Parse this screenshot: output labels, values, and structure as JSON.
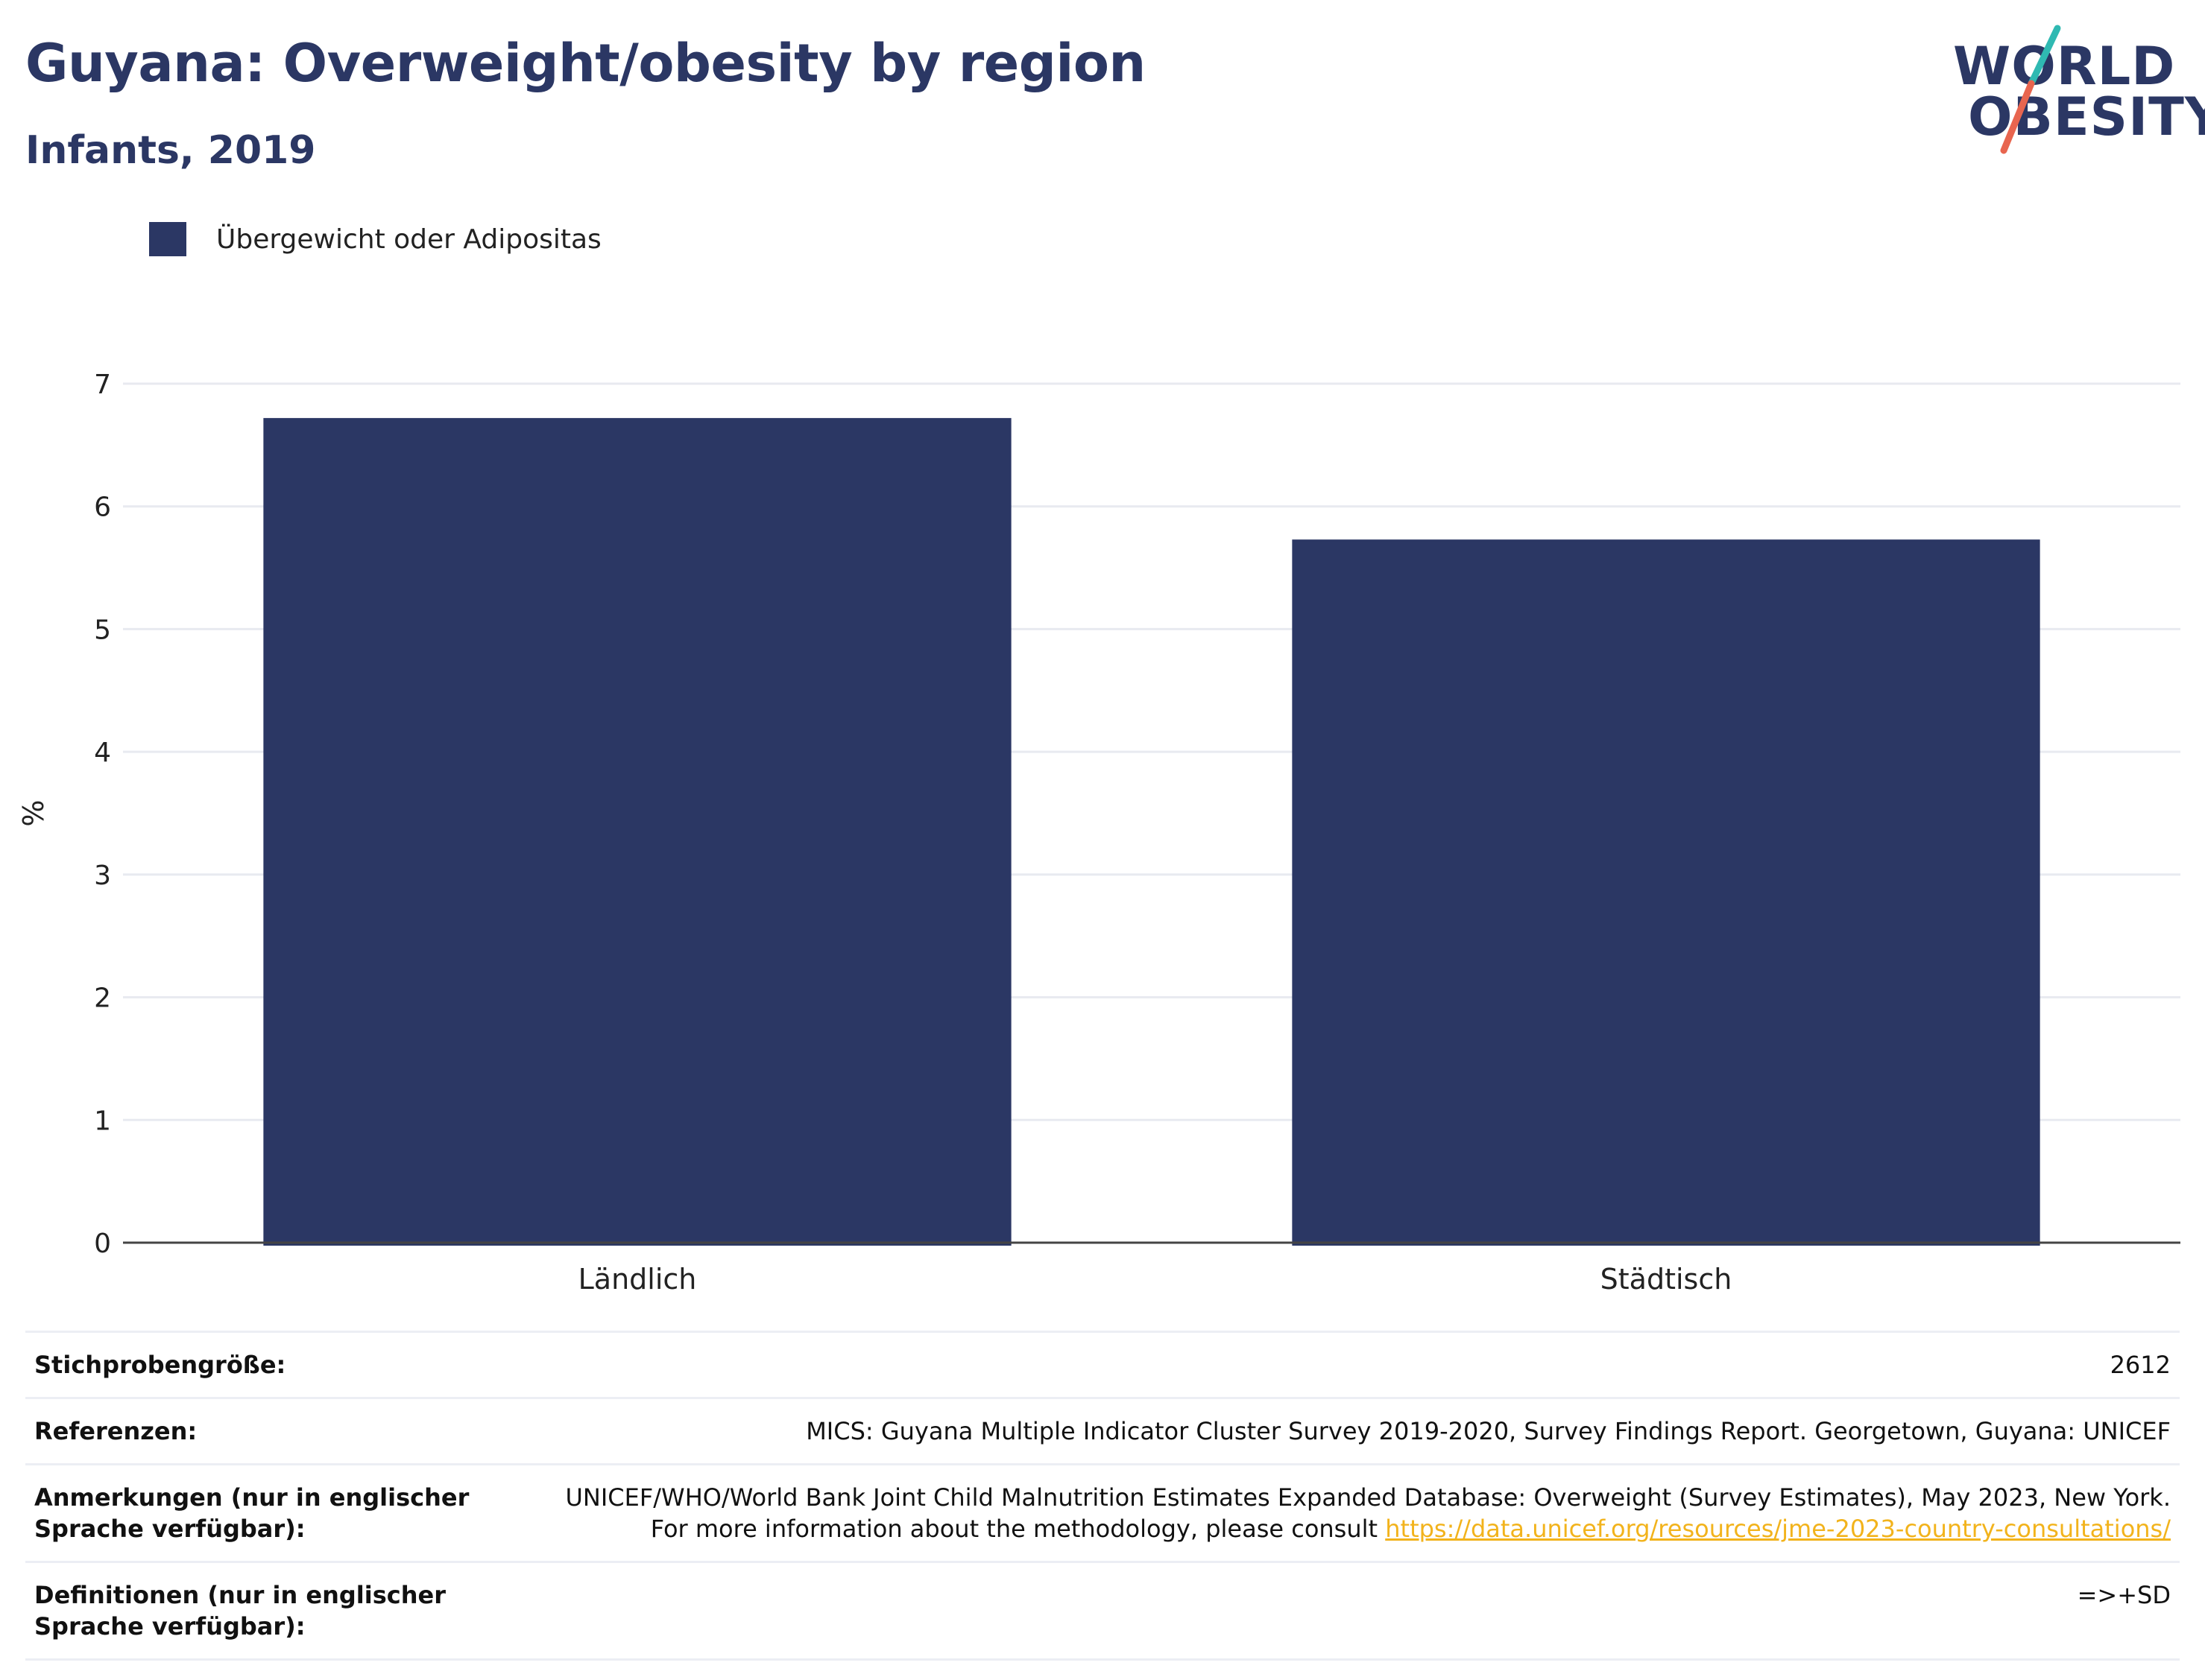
{
  "header": {
    "title": "Guyana: Overweight/obesity by region",
    "subtitle": "Infants, 2019"
  },
  "logo": {
    "line1": "WORLD",
    "line2": "OBESITY",
    "accent_colors": [
      "#2fb9b2",
      "#e8654f"
    ]
  },
  "legend": {
    "label": "Übergewicht oder Adipositas",
    "color": "#2b3764"
  },
  "chart_data": {
    "type": "bar",
    "categories": [
      "Ländlich",
      "Städtisch"
    ],
    "series": [
      {
        "name": "Übergewicht oder Adipositas",
        "values": [
          6.72,
          5.73
        ],
        "color": "#2b3764"
      }
    ],
    "ylabel": "%",
    "ylim": [
      0,
      7
    ],
    "yticks": [
      0,
      1,
      2,
      3,
      4,
      5,
      6,
      7
    ],
    "grid": true,
    "legend_position": "top-left"
  },
  "info": {
    "rows": [
      {
        "key": "Stichprobengröße:",
        "value": "2612"
      },
      {
        "key": "Referenzen:",
        "value": "MICS: Guyana Multiple Indicator Cluster Survey 2019-2020, Survey Findings Report. Georgetown, Guyana: UNICEF"
      },
      {
        "key": "Anmerkungen (nur in englischer Sprache verfügbar):",
        "value": "UNICEF/WHO/World Bank Joint Child Malnutrition Estimates Expanded Database: Overweight (Survey Estimates), May 2023, New York. For more information about the methodology, please consult",
        "link": "https://data.unicef.org/resources/jme-2023-country-consultations/"
      },
      {
        "key": "Definitionen (nur in englischer Sprache verfügbar):",
        "value": "=>+SD"
      }
    ]
  }
}
